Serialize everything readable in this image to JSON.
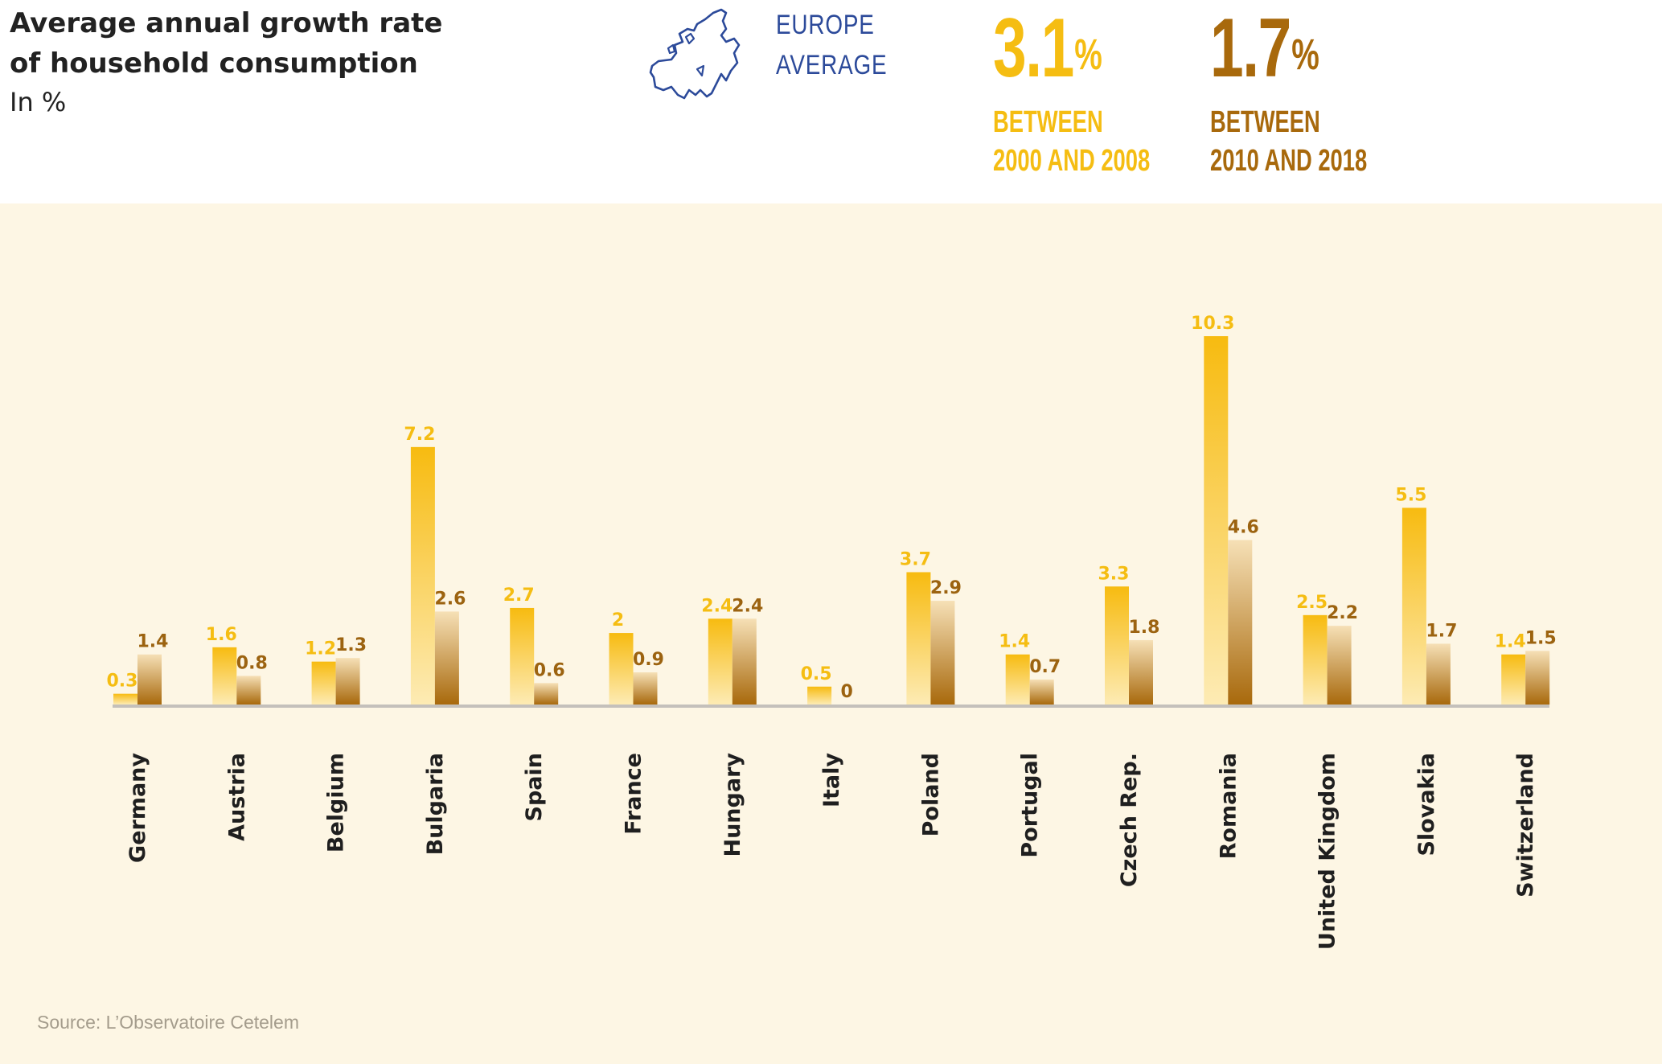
{
  "header": {
    "title_line1": "Average annual growth rate",
    "title_line2": "of household consumption",
    "subtitle": "In %",
    "europe_label_line1": "EUROPE",
    "europe_label_line2": "AVERAGE",
    "map_icon": "europe-map-icon"
  },
  "averages": [
    {
      "value": "3.1",
      "unit": "%",
      "caption_line1": "BETWEEN",
      "caption_line2": "2000 AND 2008",
      "color": "#f5bd12"
    },
    {
      "value": "1.7",
      "unit": "%",
      "caption_line1": "BETWEEN",
      "caption_line2": "2010 AND 2018",
      "color": "#a8690c"
    }
  ],
  "source": "Source: L’Observatoire Cetelem",
  "chart_data": {
    "type": "bar",
    "title": "Average annual growth rate of household consumption",
    "ylabel": "In %",
    "categories": [
      "Germany",
      "Austria",
      "Belgium",
      "Bulgaria",
      "Spain",
      "France",
      "Hungary",
      "Italy",
      "Poland",
      "Portugal",
      "Czech Rep.",
      "Romania",
      "United Kingdom",
      "Slovakia",
      "Switzerland"
    ],
    "series": [
      {
        "name": "BETWEEN 2000 AND 2008",
        "values": [
          0.3,
          1.6,
          1.2,
          7.2,
          2.7,
          2,
          2.4,
          0.5,
          3.7,
          1.4,
          3.3,
          10.3,
          2.5,
          5.5,
          1.4
        ],
        "color": "#f5bd12"
      },
      {
        "name": "BETWEEN 2010 AND 2018",
        "values": [
          1.4,
          0.8,
          1.3,
          2.6,
          0.6,
          0.9,
          2.4,
          0,
          2.9,
          0.7,
          1.8,
          4.6,
          2.2,
          1.7,
          1.5
        ],
        "color": "#a8690c"
      }
    ],
    "ylim": [
      0,
      10.3
    ],
    "grid": false,
    "legend": "top"
  }
}
